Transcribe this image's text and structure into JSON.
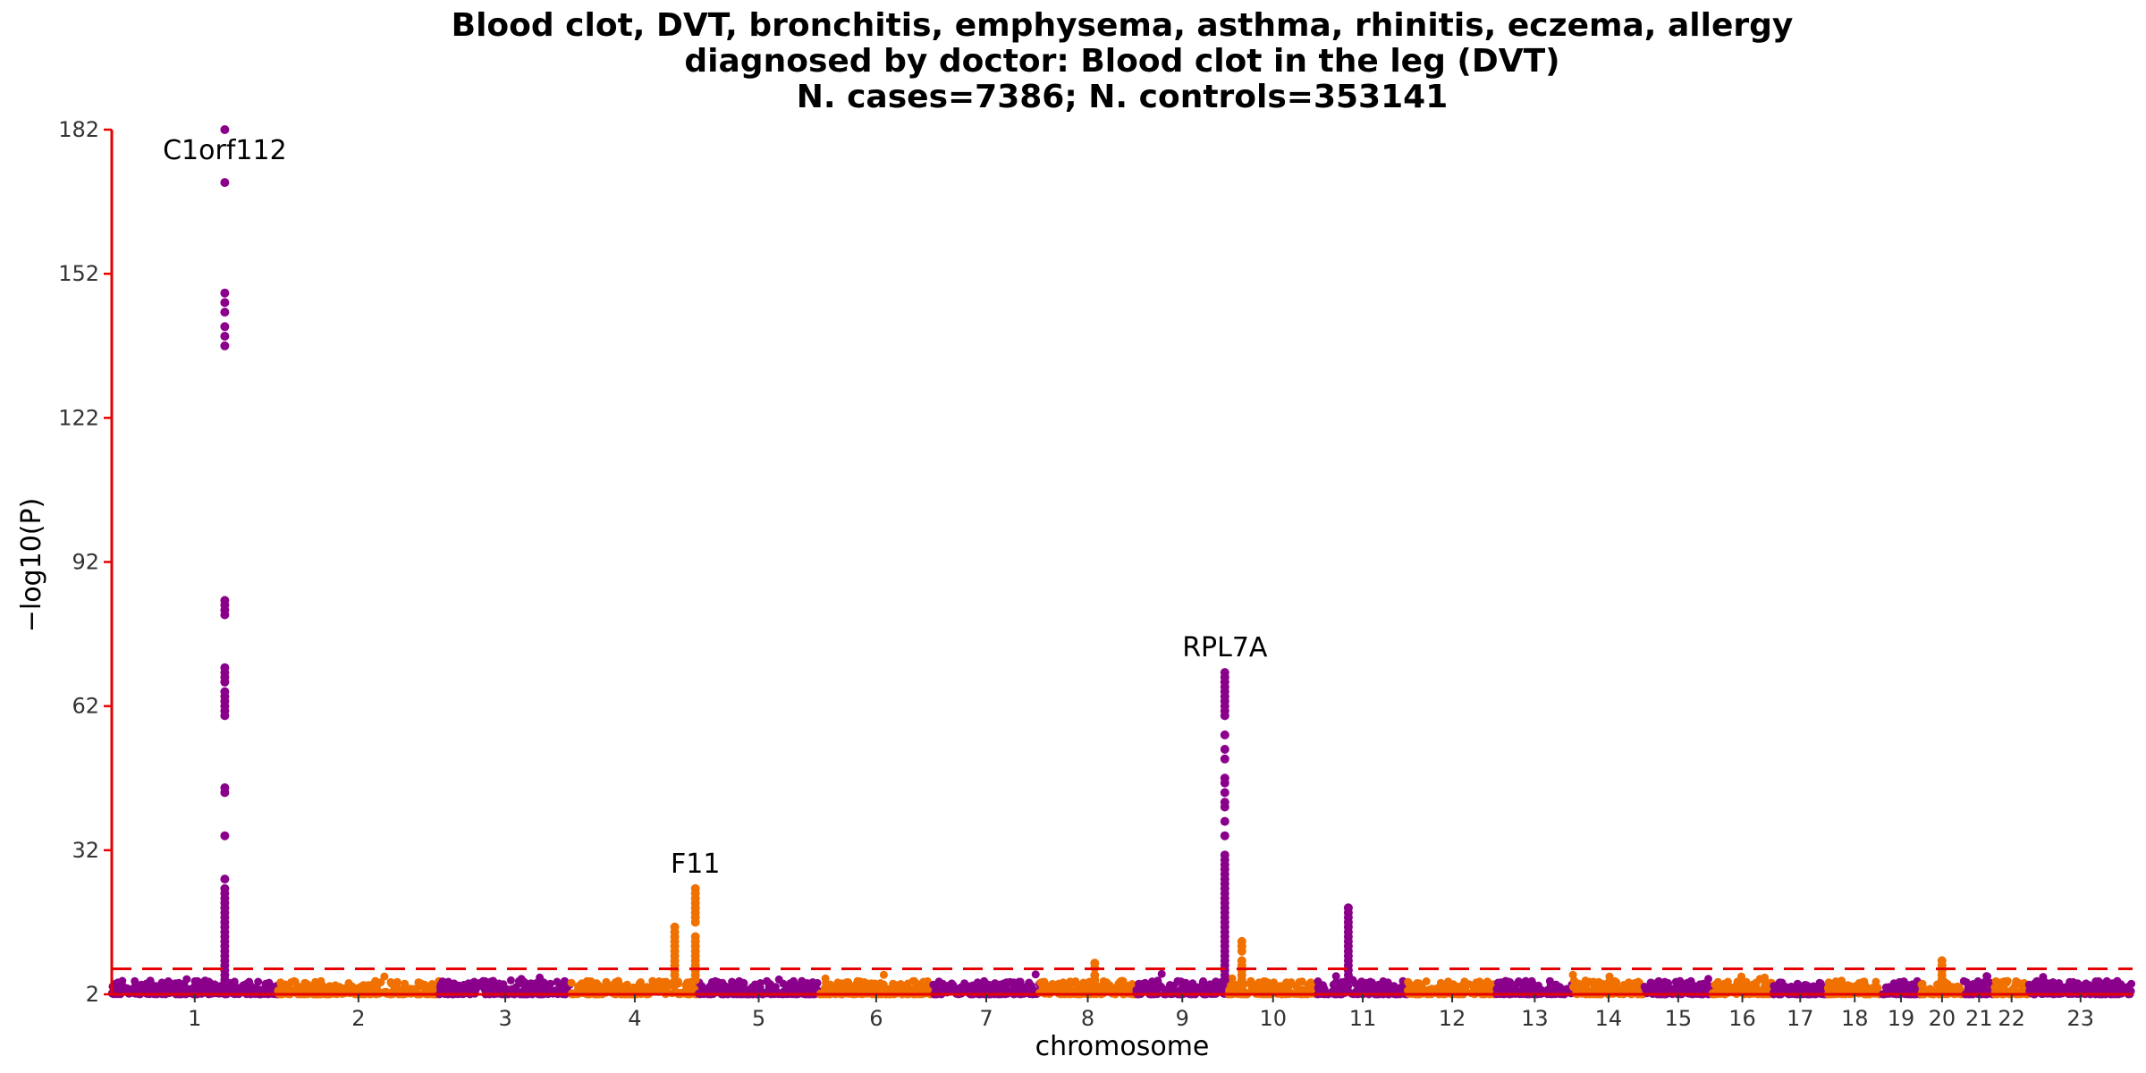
{
  "chart_data": {
    "type": "scatter",
    "title": [
      "Blood clot, DVT, bronchitis, emphysema, asthma, rhinitis, eczema, allergy",
      "diagnosed by doctor: Blood clot in the leg (DVT)",
      "N. cases=7386; N. controls=353141"
    ],
    "xlabel": "chromosome",
    "ylabel": "−log10(P)",
    "ylim": [
      2,
      182
    ],
    "yticks": [
      2,
      32,
      62,
      92,
      122,
      152,
      182
    ],
    "significance_threshold": 7.3,
    "grid": false,
    "colors": {
      "odd": "#8B008B",
      "even": "#F07000",
      "axis": "#E60000",
      "threshold": "#E60000"
    },
    "chromosomes": [
      {
        "label": "1",
        "start": 0.0,
        "end": 248.9
      },
      {
        "label": "2",
        "start": 248.9,
        "end": 491.1
      },
      {
        "label": "3",
        "start": 491.1,
        "end": 689.4
      },
      {
        "label": "4",
        "start": 689.4,
        "end": 879.6
      },
      {
        "label": "5",
        "start": 879.6,
        "end": 1061.1
      },
      {
        "label": "6",
        "start": 1061.1,
        "end": 1231.9
      },
      {
        "label": "7",
        "start": 1231.9,
        "end": 1391.3
      },
      {
        "label": "8",
        "start": 1391.3,
        "end": 1536.5
      },
      {
        "label": "9",
        "start": 1536.5,
        "end": 1674.9
      },
      {
        "label": "10",
        "start": 1674.9,
        "end": 1808.7
      },
      {
        "label": "11",
        "start": 1808.7,
        "end": 1943.8
      },
      {
        "label": "12",
        "start": 1943.8,
        "end": 2077.1
      },
      {
        "label": "13",
        "start": 2077.1,
        "end": 2191.5
      },
      {
        "label": "14",
        "start": 2191.5,
        "end": 2298.5
      },
      {
        "label": "15",
        "start": 2298.5,
        "end": 2400.5
      },
      {
        "label": "16",
        "start": 2400.5,
        "end": 2490.8
      },
      {
        "label": "17",
        "start": 2490.8,
        "end": 2574.1
      },
      {
        "label": "18",
        "start": 2574.1,
        "end": 2654.4
      },
      {
        "label": "19",
        "start": 2654.4,
        "end": 2713.0
      },
      {
        "label": "20",
        "start": 2713.0,
        "end": 2777.4
      },
      {
        "label": "21",
        "start": 2777.4,
        "end": 2824.1
      },
      {
        "label": "22",
        "start": 2824.1,
        "end": 2874.9
      },
      {
        "label": "23",
        "start": 2874.9,
        "end": 3031.0
      }
    ],
    "peaks": [
      {
        "chr": 1,
        "pos": 169.5,
        "values": [
          182,
          171,
          148,
          146,
          144,
          141,
          139,
          137,
          84,
          83,
          82,
          81,
          70,
          69,
          68,
          67,
          65,
          64,
          63,
          62,
          61,
          60,
          45,
          44,
          35,
          26,
          24,
          23,
          22,
          21,
          20,
          19,
          18,
          17,
          16,
          15,
          14,
          13,
          12,
          11,
          10,
          9,
          8,
          7,
          6,
          5
        ]
      },
      {
        "chr": 4,
        "pos": 155.0,
        "values": [
          16,
          15,
          14,
          13,
          12,
          11,
          10,
          9,
          8,
          7,
          6
        ]
      },
      {
        "chr": 4,
        "pos": 186.0,
        "values": [
          24,
          23,
          22,
          21,
          20,
          19,
          18,
          17,
          14,
          13,
          12,
          11,
          10,
          9,
          8,
          7,
          6,
          5
        ]
      },
      {
        "chr": 8,
        "pos": 83.0,
        "values": [
          8.5,
          7.5,
          6,
          5
        ]
      },
      {
        "chr": 9,
        "pos": 133.0,
        "values": [
          69,
          68,
          67,
          66,
          65,
          64,
          63,
          62,
          61,
          60,
          56,
          53,
          51,
          47,
          46,
          44,
          42,
          41,
          38,
          35,
          31,
          30,
          29,
          28,
          27,
          26,
          25,
          24,
          23,
          22,
          21,
          20,
          19,
          18,
          17,
          16,
          15,
          14,
          13,
          12,
          11,
          10,
          9,
          8,
          7,
          6,
          5
        ]
      },
      {
        "chr": 10,
        "pos": 20.0,
        "values": [
          13,
          12,
          11,
          9,
          8,
          7,
          6,
          5
        ]
      },
      {
        "chr": 11,
        "pos": 46.0,
        "values": [
          20,
          19,
          18,
          17,
          16,
          15,
          14,
          13,
          12,
          11,
          10,
          9,
          8,
          7,
          6,
          5
        ]
      },
      {
        "chr": 20,
        "pos": 32.0,
        "values": [
          9,
          8,
          7,
          6,
          5
        ]
      }
    ],
    "annotations": [
      {
        "text": "C1orf112",
        "chr": 1,
        "pos": 169.5,
        "y": 182
      },
      {
        "text": "F11",
        "chr": 4,
        "pos": 186.0,
        "y": 24
      },
      {
        "text": "RPL7A",
        "chr": 9,
        "pos": 133.0,
        "y": 69
      }
    ]
  }
}
